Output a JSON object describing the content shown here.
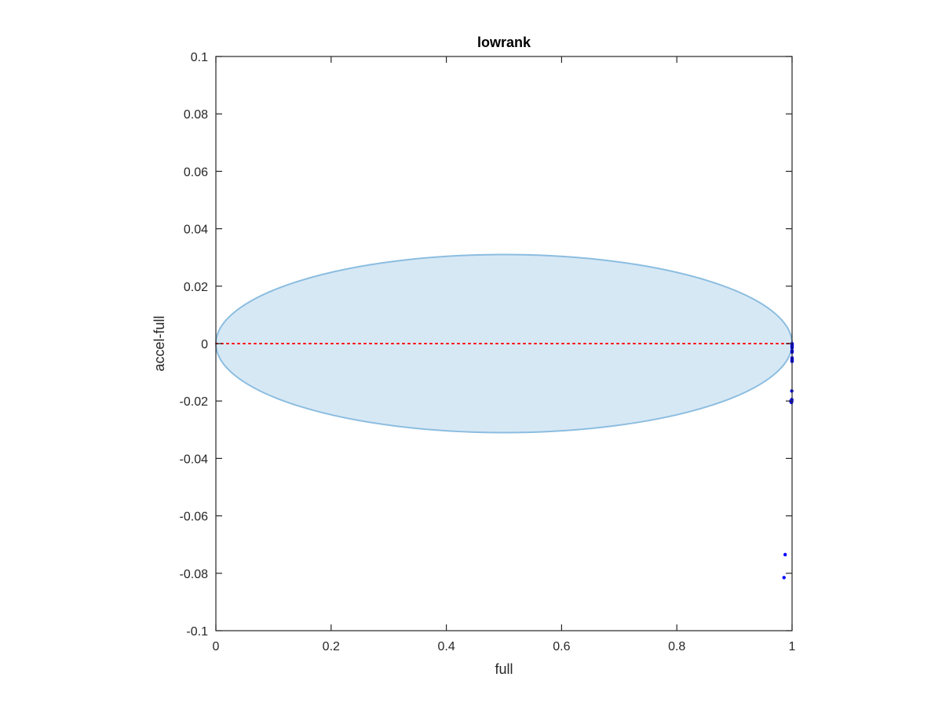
{
  "chart_data": {
    "type": "scatter",
    "title": "lowrank",
    "xlabel": "full",
    "ylabel": "accel-full",
    "xlim": [
      0,
      1
    ],
    "ylim": [
      -0.1,
      0.1
    ],
    "x_ticks": [
      0,
      0.2,
      0.4,
      0.6,
      0.8,
      1
    ],
    "x_tick_labels": [
      "0",
      "0.2",
      "0.4",
      "0.6",
      "0.8",
      "1"
    ],
    "y_ticks": [
      0.1,
      0.08,
      0.06,
      0.04,
      0.02,
      0,
      -0.02,
      -0.04,
      -0.06,
      -0.08,
      -0.1
    ],
    "y_tick_labels": [
      "0.1",
      "0.08",
      "0.06",
      "0.04",
      "0.02",
      "0",
      "-0.02",
      "-0.04",
      "-0.06",
      "-0.08",
      "-0.1"
    ],
    "grid": false,
    "box": true,
    "reference_line": {
      "y": 0,
      "style": "dotted",
      "color": "#ff0000"
    },
    "ellipse": {
      "center": [
        0.5,
        0
      ],
      "x_semi_axis": 0.5,
      "y_semi_axis": 0.031,
      "fill_color": "#d7e8f5",
      "edge_color": "#8bbde0"
    },
    "points": {
      "color": "#0000ff",
      "x": [
        1,
        1,
        1,
        1,
        1,
        1,
        1,
        1,
        1,
        1,
        1,
        0.9995,
        0.9995,
        0.9995,
        0.999,
        0.998,
        0.998,
        0.988,
        0.986
      ],
      "y": [
        0,
        -0.0002,
        -0.0005,
        -0.001,
        -0.0015,
        -0.0025,
        -0.003,
        -0.005,
        -0.0055,
        -0.006,
        -0.0062,
        -0.0165,
        -0.0195,
        -0.02,
        -0.0205,
        -0.02,
        -0.0202,
        -0.0735,
        -0.0815
      ]
    },
    "colors": {
      "axis": "#262626",
      "background": "#ffffff"
    }
  }
}
